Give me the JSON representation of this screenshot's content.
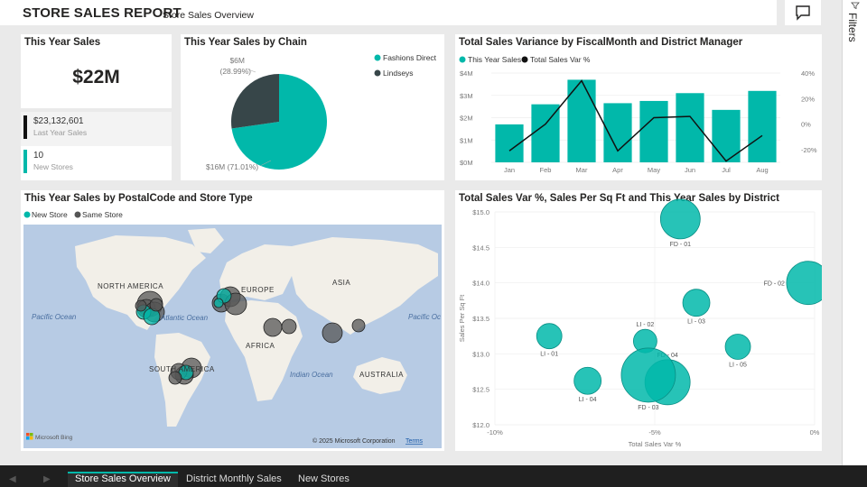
{
  "header": {
    "title": "STORE SALES REPORT",
    "subtitle": "Store Sales Overview"
  },
  "filters_pane": {
    "label": "Filters",
    "icon": "filter-icon"
  },
  "comment_icon": "speech-bubble-icon",
  "colors": {
    "teal": "#01b8aa",
    "dark": "#374649",
    "map_water": "#b7cbe4",
    "map_land": "#f2efe8"
  },
  "kpis": {
    "title": "This Year Sales",
    "value": "$22M",
    "last_year": {
      "value": "$23,132,601",
      "label": "Last Year Sales",
      "color": "#111111"
    },
    "new_stores": {
      "value": "10",
      "label": "New Stores",
      "color": "#01b8aa"
    }
  },
  "pie": {
    "title": "This Year Sales by Chain",
    "legend": [
      "Fashions Direct",
      "Lindseys"
    ],
    "label_top_value": "$6M",
    "label_top_pct": "(28.99%)",
    "label_bottom": "$16M (71.01%)"
  },
  "variance": {
    "title": "Total Sales Variance by FiscalMonth and District Manager",
    "legend": [
      "This Year Sales",
      "Total Sales Var %"
    ]
  },
  "map": {
    "title": "This Year Sales by PostalCode and Store Type",
    "legend": [
      "New Store",
      "Same Store"
    ],
    "labels": {
      "north_america": "NORTH AMERICA",
      "europe": "EUROPE",
      "asia": "ASIA",
      "africa": "AFRICA",
      "south_america": "SOUTH AMERICA",
      "australia": "AUSTRALIA",
      "pacific_left": "Pacific Ocean",
      "pacific_right": "Pacific Oc",
      "atlantic": "Atlantic Ocean",
      "indian": "Indian Ocean"
    },
    "copyright": "© 2025 Microsoft Corporation",
    "terms": "Terms",
    "brand": "Microsoft Bing"
  },
  "scatter": {
    "title": "Total Sales Var %, Sales Per Sq Ft and This Year Sales by District"
  },
  "tabs": {
    "active": "Store Sales Overview",
    "t2": "District Monthly Sales",
    "t3": "New Stores"
  },
  "chart_data": [
    {
      "type": "pie",
      "title": "This Year Sales by Chain",
      "categories": [
        "Fashions Direct",
        "Lindseys"
      ],
      "values": [
        16,
        6
      ],
      "percentages": [
        71.01,
        28.99
      ],
      "colors": [
        "#01b8aa",
        "#374649"
      ]
    },
    {
      "type": "bar",
      "title": "Total Sales Variance by FiscalMonth and District Manager",
      "categories": [
        "Jan",
        "Feb",
        "Mar",
        "Apr",
        "May",
        "Jun",
        "Jul",
        "Aug"
      ],
      "series": [
        {
          "name": "This Year Sales",
          "type": "bar",
          "axis": "left",
          "values": [
            1.7,
            2.6,
            3.7,
            2.65,
            2.75,
            3.1,
            2.35,
            3.2
          ]
        },
        {
          "name": "Total Sales Var %",
          "type": "line",
          "axis": "right",
          "values": [
            -21,
            0,
            34,
            -21,
            5,
            6,
            -29,
            -9
          ]
        }
      ],
      "ylim": [
        0,
        4
      ],
      "yticks": [
        "$0M",
        "$1M",
        "$2M",
        "$3M",
        "$4M"
      ],
      "y2lim": [
        -30,
        40
      ],
      "y2ticks": [
        "-20%",
        "0%",
        "20%",
        "40%"
      ],
      "legend": "top-left"
    },
    {
      "type": "scatter",
      "title": "Total Sales Var %, Sales Per Sq Ft and This Year Sales by District",
      "xlabel": "Total Sales Var %",
      "ylabel": "Sales Per Sq Ft",
      "xlim": [
        -10,
        0
      ],
      "ylim": [
        12.0,
        15.0
      ],
      "xticks": [
        "-10%",
        "-5%",
        "0%"
      ],
      "yticks": [
        "$12.0",
        "$12.5",
        "$13.0",
        "$13.5",
        "$14.0",
        "$14.5",
        "$15.0"
      ],
      "points": [
        {
          "name": "FD - 01",
          "x": -4.2,
          "y": 14.9,
          "size": 22
        },
        {
          "name": "FD - 02",
          "x": -0.2,
          "y": 14.0,
          "size": 24
        },
        {
          "name": "LI - 03",
          "x": -3.7,
          "y": 13.72,
          "size": 15
        },
        {
          "name": "LI - 02",
          "x": -5.3,
          "y": 13.18,
          "size": 13
        },
        {
          "name": "LI - 01",
          "x": -8.3,
          "y": 13.25,
          "size": 14
        },
        {
          "name": "LI - 05",
          "x": -2.4,
          "y": 13.1,
          "size": 14
        },
        {
          "name": "FD - 04",
          "x": -4.6,
          "y": 12.6,
          "size": 25
        },
        {
          "name": "FD - 03",
          "x": -5.2,
          "y": 12.7,
          "size": 30
        },
        {
          "name": "LI - 04",
          "x": -7.1,
          "y": 12.62,
          "size": 15
        }
      ]
    }
  ]
}
